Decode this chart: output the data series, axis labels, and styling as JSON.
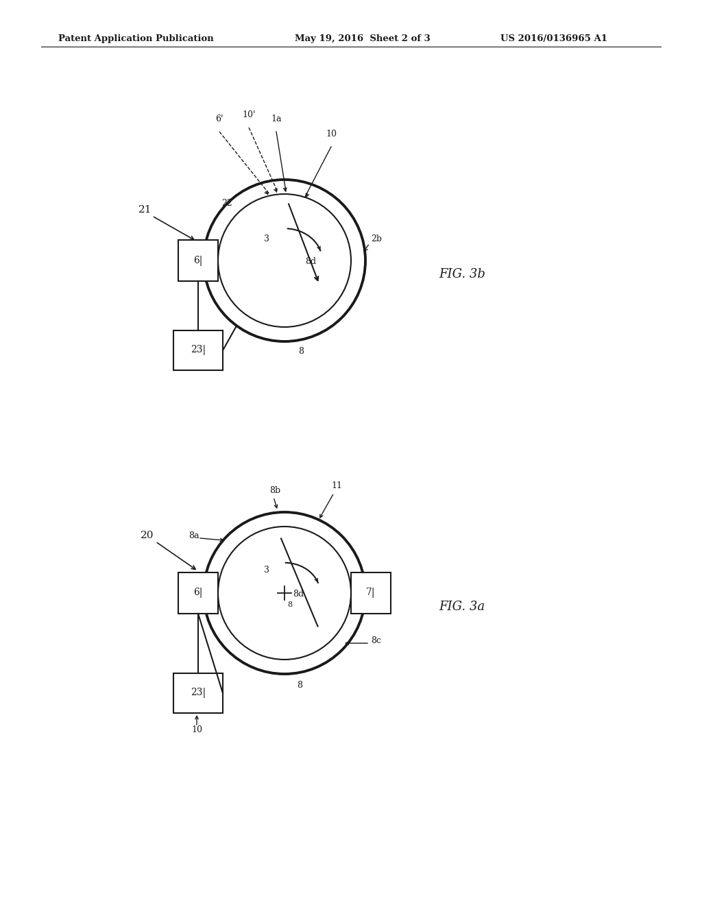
{
  "header_left": "Patent Application Publication",
  "header_mid": "May 19, 2016  Sheet 2 of 3",
  "header_right": "US 2016/0136965 A1",
  "bg_color": "#ffffff",
  "line_color": "#1a1a1a",
  "text_color": "#1a1a1a"
}
